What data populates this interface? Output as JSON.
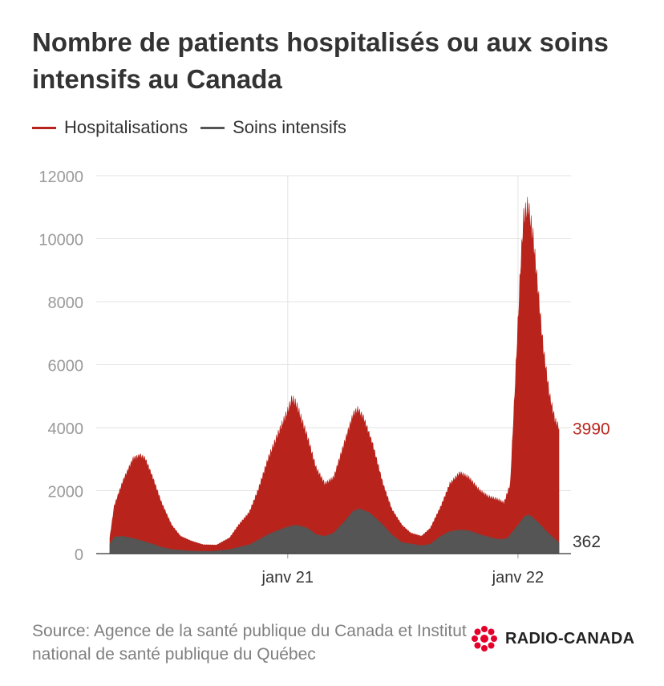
{
  "header": {
    "title": "Nombre de patients hospitalisés ou aux soins intensifs au Canada"
  },
  "legend": {
    "items": [
      {
        "label": "Hospitalisations",
        "color": "#b8241c"
      },
      {
        "label": "Soins intensifs",
        "color": "#555555"
      }
    ]
  },
  "footer": {
    "source": "Source: Agence de la santé publique du Canada et Institut national de santé publique du Québec",
    "logo_text": "RADIO-CANADA",
    "logo_icon": "radio-canada-gem-icon",
    "logo_color": "#e4002b"
  },
  "chart_data": {
    "type": "area",
    "ylim": [
      0,
      12000
    ],
    "yticks": [
      0,
      2000,
      4000,
      6000,
      8000,
      10000,
      12000
    ],
    "xlim": [
      "2020-03-25",
      "2022-03-07"
    ],
    "xticks": [
      {
        "label": "janv 21",
        "date": "2021-01-01"
      },
      {
        "label": "janv 22",
        "date": "2022-01-01"
      }
    ],
    "grid": true,
    "legend_position": "top-left",
    "series": [
      {
        "name": "Hospitalisations",
        "color": "#b8241c",
        "end_label": "3990",
        "points": [
          [
            "2020-03-25",
            500
          ],
          [
            "2020-04-01",
            1500
          ],
          [
            "2020-04-15",
            2300
          ],
          [
            "2020-05-01",
            3000
          ],
          [
            "2020-05-12",
            3100
          ],
          [
            "2020-05-20",
            3000
          ],
          [
            "2020-06-01",
            2400
          ],
          [
            "2020-06-15",
            1600
          ],
          [
            "2020-07-01",
            900
          ],
          [
            "2020-07-15",
            550
          ],
          [
            "2020-08-01",
            400
          ],
          [
            "2020-08-20",
            280
          ],
          [
            "2020-09-10",
            270
          ],
          [
            "2020-10-01",
            500
          ],
          [
            "2020-10-15",
            900
          ],
          [
            "2020-11-01",
            1300
          ],
          [
            "2020-11-15",
            2000
          ],
          [
            "2020-12-01",
            3000
          ],
          [
            "2020-12-15",
            3700
          ],
          [
            "2021-01-01",
            4500
          ],
          [
            "2021-01-08",
            4900
          ],
          [
            "2021-01-15",
            4700
          ],
          [
            "2021-02-01",
            3700
          ],
          [
            "2021-02-15",
            2700
          ],
          [
            "2021-03-01",
            2200
          ],
          [
            "2021-03-15",
            2400
          ],
          [
            "2021-04-01",
            3500
          ],
          [
            "2021-04-15",
            4400
          ],
          [
            "2021-04-22",
            4550
          ],
          [
            "2021-05-01",
            4300
          ],
          [
            "2021-05-15",
            3500
          ],
          [
            "2021-06-01",
            2200
          ],
          [
            "2021-06-15",
            1400
          ],
          [
            "2021-07-01",
            900
          ],
          [
            "2021-07-15",
            650
          ],
          [
            "2021-08-01",
            550
          ],
          [
            "2021-08-15",
            800
          ],
          [
            "2021-09-01",
            1500
          ],
          [
            "2021-09-15",
            2200
          ],
          [
            "2021-10-01",
            2550
          ],
          [
            "2021-10-15",
            2400
          ],
          [
            "2021-11-01",
            2000
          ],
          [
            "2021-11-15",
            1800
          ],
          [
            "2021-12-01",
            1700
          ],
          [
            "2021-12-10",
            1600
          ],
          [
            "2021-12-20",
            2200
          ],
          [
            "2021-12-28",
            5500
          ],
          [
            "2022-01-05",
            9000
          ],
          [
            "2022-01-10",
            10600
          ],
          [
            "2022-01-17",
            11000
          ],
          [
            "2022-01-25",
            10000
          ],
          [
            "2022-02-01",
            8500
          ],
          [
            "2022-02-10",
            6500
          ],
          [
            "2022-02-20",
            5000
          ],
          [
            "2022-03-01",
            4200
          ],
          [
            "2022-03-07",
            3990
          ]
        ]
      },
      {
        "name": "Soins intensifs",
        "color": "#555555",
        "end_label": "362",
        "points": [
          [
            "2020-03-25",
            300
          ],
          [
            "2020-04-01",
            520
          ],
          [
            "2020-04-15",
            550
          ],
          [
            "2020-05-01",
            480
          ],
          [
            "2020-05-15",
            400
          ],
          [
            "2020-06-01",
            300
          ],
          [
            "2020-06-15",
            200
          ],
          [
            "2020-07-01",
            130
          ],
          [
            "2020-08-01",
            80
          ],
          [
            "2020-09-01",
            70
          ],
          [
            "2020-10-01",
            130
          ],
          [
            "2020-11-01",
            280
          ],
          [
            "2020-12-01",
            600
          ],
          [
            "2021-01-01",
            850
          ],
          [
            "2021-01-15",
            900
          ],
          [
            "2021-02-01",
            800
          ],
          [
            "2021-02-15",
            600
          ],
          [
            "2021-03-01",
            550
          ],
          [
            "2021-03-15",
            650
          ],
          [
            "2021-04-01",
            1000
          ],
          [
            "2021-04-15",
            1350
          ],
          [
            "2021-04-25",
            1420
          ],
          [
            "2021-05-10",
            1300
          ],
          [
            "2021-06-01",
            900
          ],
          [
            "2021-06-15",
            600
          ],
          [
            "2021-07-01",
            350
          ],
          [
            "2021-08-01",
            250
          ],
          [
            "2021-08-15",
            300
          ],
          [
            "2021-09-01",
            550
          ],
          [
            "2021-09-15",
            700
          ],
          [
            "2021-10-01",
            750
          ],
          [
            "2021-10-15",
            720
          ],
          [
            "2021-11-01",
            600
          ],
          [
            "2021-12-01",
            450
          ],
          [
            "2021-12-15",
            470
          ],
          [
            "2022-01-01",
            900
          ],
          [
            "2022-01-12",
            1200
          ],
          [
            "2022-01-20",
            1220
          ],
          [
            "2022-02-01",
            1000
          ],
          [
            "2022-02-15",
            700
          ],
          [
            "2022-03-01",
            450
          ],
          [
            "2022-03-07",
            362
          ]
        ]
      }
    ]
  }
}
